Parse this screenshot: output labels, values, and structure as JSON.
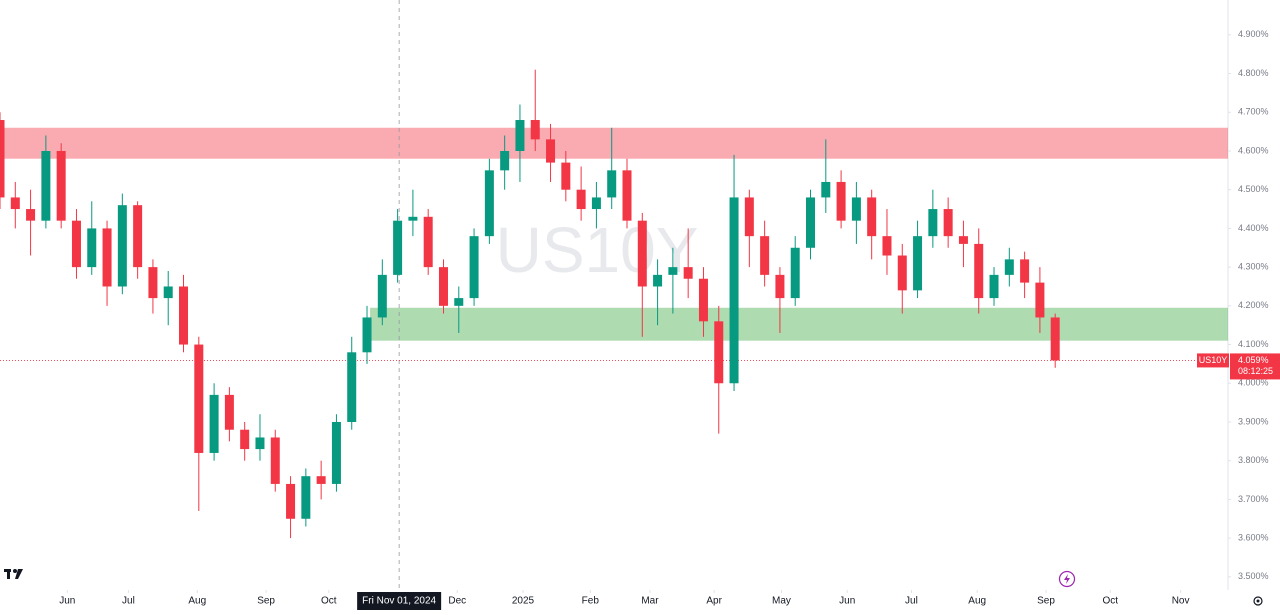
{
  "chart_data": {
    "type": "candlestick",
    "watermark": "US10Y",
    "up_color": "#089981",
    "down_color": "#f23645",
    "open": [
      4.68,
      4.48,
      4.45,
      4.42,
      4.6,
      4.42,
      4.3,
      4.4,
      4.25,
      4.46,
      4.3,
      4.22,
      4.25,
      4.1,
      3.82,
      3.97,
      3.88,
      3.83,
      3.86,
      3.74,
      3.65,
      3.76,
      3.74,
      3.9,
      4.08,
      4.17,
      4.28,
      4.42,
      4.43,
      4.3,
      4.2,
      4.22,
      4.38,
      4.55,
      4.6,
      4.68,
      4.63,
      4.57,
      4.5,
      4.45,
      4.48,
      4.55,
      4.42,
      4.25,
      4.28,
      4.3,
      4.27,
      4.16,
      4.0,
      4.48,
      4.38,
      4.28,
      4.22,
      4.35,
      4.48,
      4.52,
      4.42,
      4.48,
      4.38,
      4.33,
      4.24,
      4.38,
      4.45,
      4.38,
      4.36,
      4.22,
      4.28,
      4.32,
      4.26,
      4.17
    ],
    "high": [
      4.7,
      4.52,
      4.5,
      4.64,
      4.62,
      4.45,
      4.47,
      4.42,
      4.49,
      4.47,
      4.32,
      4.29,
      4.28,
      4.12,
      4.0,
      3.99,
      3.9,
      3.92,
      3.88,
      3.76,
      3.78,
      3.8,
      3.92,
      4.12,
      4.2,
      4.32,
      4.45,
      4.5,
      4.45,
      4.32,
      4.25,
      4.4,
      4.58,
      4.64,
      4.72,
      4.81,
      4.67,
      4.6,
      4.56,
      4.52,
      4.66,
      4.58,
      4.44,
      4.32,
      4.35,
      4.4,
      4.3,
      4.2,
      4.59,
      4.5,
      4.42,
      4.3,
      4.38,
      4.5,
      4.63,
      4.55,
      4.52,
      4.5,
      4.45,
      4.36,
      4.42,
      4.5,
      4.48,
      4.42,
      4.4,
      4.3,
      4.35,
      4.34,
      4.3,
      4.18
    ],
    "low": [
      4.45,
      4.4,
      4.33,
      4.4,
      4.4,
      4.27,
      4.28,
      4.2,
      4.23,
      4.27,
      4.18,
      4.15,
      4.08,
      3.67,
      3.8,
      3.85,
      3.8,
      3.8,
      3.72,
      3.6,
      3.63,
      3.7,
      3.72,
      3.88,
      4.05,
      4.15,
      4.26,
      4.38,
      4.28,
      4.18,
      4.13,
      4.2,
      4.36,
      4.5,
      4.52,
      4.6,
      4.52,
      4.47,
      4.42,
      4.4,
      4.45,
      4.4,
      4.12,
      4.15,
      4.18,
      4.22,
      4.12,
      3.87,
      3.98,
      4.3,
      4.25,
      4.13,
      4.2,
      4.32,
      4.44,
      4.4,
      4.36,
      4.32,
      4.28,
      4.18,
      4.22,
      4.35,
      4.35,
      4.3,
      4.18,
      4.2,
      4.25,
      4.22,
      4.13,
      4.04
    ],
    "close": [
      4.48,
      4.45,
      4.42,
      4.6,
      4.42,
      4.3,
      4.4,
      4.25,
      4.46,
      4.3,
      4.22,
      4.25,
      4.1,
      3.82,
      3.97,
      3.88,
      3.83,
      3.86,
      3.74,
      3.65,
      3.76,
      3.74,
      3.9,
      4.08,
      4.17,
      4.28,
      4.42,
      4.43,
      4.3,
      4.2,
      4.22,
      4.38,
      4.55,
      4.6,
      4.68,
      4.63,
      4.57,
      4.5,
      4.45,
      4.48,
      4.55,
      4.42,
      4.25,
      4.28,
      4.3,
      4.27,
      4.16,
      4.0,
      4.48,
      4.38,
      4.28,
      4.22,
      4.35,
      4.48,
      4.52,
      4.42,
      4.48,
      4.38,
      4.33,
      4.24,
      4.38,
      4.45,
      4.38,
      4.36,
      4.22,
      4.28,
      4.32,
      4.26,
      4.17,
      4.059
    ],
    "zones": [
      {
        "from": 4.58,
        "to": 4.66,
        "start": 0,
        "color": "rgba(242,54,69,0.42)"
      },
      {
        "from": 4.11,
        "to": 4.195,
        "start": 24.2,
        "color": "rgba(76,175,80,0.45)"
      }
    ],
    "last_price": {
      "symbol": "US10Y",
      "value": 4.059,
      "value_label": "4.059%",
      "countdown": "08:12:25",
      "color": "#f23645"
    },
    "crosshair": {
      "x": 26.1,
      "label": "Fri Nov 01, 2024"
    },
    "xlim": [
      0,
      80.3
    ],
    "ylim": [
      3.466,
      4.99
    ],
    "yticks": [
      {
        "value": 4.9,
        "label": "4.900%"
      },
      {
        "value": 4.8,
        "label": "4.800%"
      },
      {
        "value": 4.7,
        "label": "4.700%"
      },
      {
        "value": 4.6,
        "label": "4.600%"
      },
      {
        "value": 4.5,
        "label": "4.500%"
      },
      {
        "value": 4.4,
        "label": "4.400%"
      },
      {
        "value": 4.3,
        "label": "4.300%"
      },
      {
        "value": 4.2,
        "label": "4.200%"
      },
      {
        "value": 4.1,
        "label": "4.100%"
      },
      {
        "value": 4.0,
        "label": "4.000%"
      },
      {
        "value": 3.9,
        "label": "3.900%"
      },
      {
        "value": 3.8,
        "label": "3.800%"
      },
      {
        "value": 3.7,
        "label": "3.700%"
      },
      {
        "value": 3.6,
        "label": "3.600%"
      },
      {
        "value": 3.5,
        "label": "3.500%"
      }
    ],
    "xticks": [
      {
        "value": 4.4,
        "label": "Jun"
      },
      {
        "value": 8.4,
        "label": "Jul"
      },
      {
        "value": 12.9,
        "label": "Aug"
      },
      {
        "value": 17.4,
        "label": "Sep"
      },
      {
        "value": 21.5,
        "label": "Oct"
      },
      {
        "value": 29.9,
        "label": "Dec"
      },
      {
        "value": 34.2,
        "label": "2025"
      },
      {
        "value": 38.6,
        "label": "Feb"
      },
      {
        "value": 42.5,
        "label": "Mar"
      },
      {
        "value": 46.7,
        "label": "Apr"
      },
      {
        "value": 51.1,
        "label": "May"
      },
      {
        "value": 55.4,
        "label": "Jun"
      },
      {
        "value": 59.6,
        "label": "Jul"
      },
      {
        "value": 63.9,
        "label": "Aug"
      },
      {
        "value": 68.4,
        "label": "Sep"
      },
      {
        "value": 72.6,
        "label": "Oct"
      },
      {
        "value": 77.2,
        "label": "Nov"
      }
    ]
  }
}
